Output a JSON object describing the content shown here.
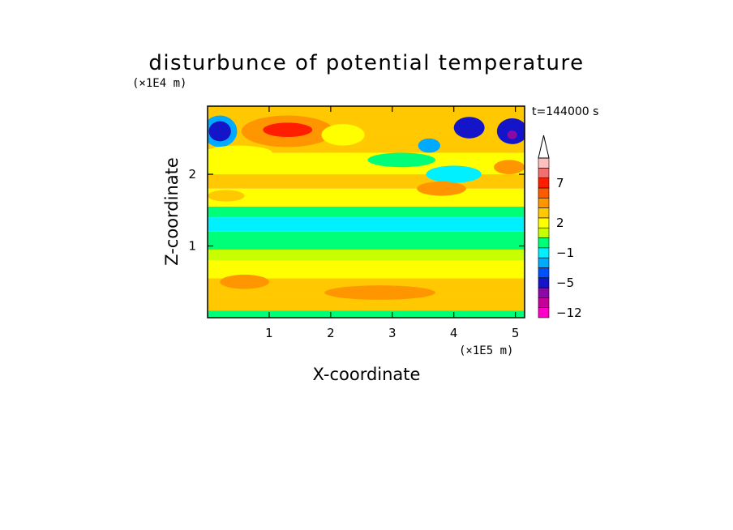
{
  "chart_data": {
    "type": "heatmap",
    "title": "disturbunce of potential temperature",
    "xlabel": "X-coordinate",
    "ylabel": "Z-coordinate",
    "x_unit": "(×1E5 m)",
    "y_unit": "(×1E4 m)",
    "time_label": "t=144000 s",
    "xlim": [
      0,
      5.15
    ],
    "ylim": [
      0,
      2.95
    ],
    "x_ticks": [
      {
        "value": 1,
        "label": "1"
      },
      {
        "value": 2,
        "label": "2"
      },
      {
        "value": 3,
        "label": "3"
      },
      {
        "value": 4,
        "label": "4"
      },
      {
        "value": 5,
        "label": "5"
      }
    ],
    "y_ticks": [
      {
        "value": 1,
        "label": "1"
      },
      {
        "value": 2,
        "label": "2"
      }
    ],
    "colorbar": {
      "levels": [
        {
          "value": -12,
          "color": "#ff00c8"
        },
        {
          "value": -10,
          "color": "#c8009a"
        },
        {
          "value": -8,
          "color": "#8a0aa6"
        },
        {
          "value": -5,
          "color": "#1414c8"
        },
        {
          "value": -4,
          "color": "#0050ff"
        },
        {
          "value": -3,
          "color": "#00aaff"
        },
        {
          "value": -1,
          "color": "#00f0ff"
        },
        {
          "value": 0,
          "color": "#00ff78"
        },
        {
          "value": 1,
          "color": "#c8ff00"
        },
        {
          "value": 2,
          "color": "#ffff00"
        },
        {
          "value": 3,
          "color": "#ffc800"
        },
        {
          "value": 5,
          "color": "#ff9600"
        },
        {
          "value": 6,
          "color": "#ff5a00"
        },
        {
          "value": 7,
          "color": "#ff1e00"
        },
        {
          "value": 8,
          "color": "#f07070"
        },
        {
          "value": 9,
          "color": "#ffc0c0"
        }
      ],
      "tick_labels": [
        {
          "value": 7,
          "label": "7"
        },
        {
          "value": 2,
          "label": "2"
        },
        {
          "value": -1,
          "label": "−1"
        },
        {
          "value": -5,
          "label": "−5"
        },
        {
          "value": -12,
          "label": "−12"
        }
      ],
      "extend": "max"
    },
    "bands": [
      {
        "z_low": 0.0,
        "z_high": 0.1,
        "level": 0
      },
      {
        "z_low": 0.1,
        "z_high": 0.3,
        "level": 3
      },
      {
        "z_low": 0.3,
        "z_high": 0.55,
        "level": 3
      },
      {
        "z_low": 0.55,
        "z_high": 0.8,
        "level": 2
      },
      {
        "z_low": 0.8,
        "z_high": 0.95,
        "level": 1
      },
      {
        "z_low": 0.95,
        "z_high": 1.2,
        "level": 0
      },
      {
        "z_low": 1.2,
        "z_high": 1.4,
        "level": -1
      },
      {
        "z_low": 1.4,
        "z_high": 1.55,
        "level": 0
      },
      {
        "z_low": 1.55,
        "z_high": 1.8,
        "level": 2
      },
      {
        "z_low": 1.8,
        "z_high": 2.0,
        "level": 3
      },
      {
        "z_low": 2.0,
        "z_high": 2.3,
        "level": 2
      },
      {
        "z_low": 2.3,
        "z_high": 2.6,
        "level": 3
      },
      {
        "z_low": 2.6,
        "z_high": 2.95,
        "level": 3
      }
    ],
    "features": [
      {
        "x": 1.3,
        "z": 2.6,
        "rx": 0.75,
        "rz": 0.22,
        "level": 5
      },
      {
        "x": 1.3,
        "z": 2.62,
        "rx": 0.4,
        "rz": 0.1,
        "level": 7
      },
      {
        "x": 0.2,
        "z": 2.6,
        "rx": 0.28,
        "rz": 0.22,
        "level": -3
      },
      {
        "x": 0.2,
        "z": 2.6,
        "rx": 0.18,
        "rz": 0.14,
        "level": -5
      },
      {
        "x": 4.25,
        "z": 2.65,
        "rx": 0.25,
        "rz": 0.15,
        "level": -5
      },
      {
        "x": 4.95,
        "z": 2.6,
        "rx": 0.25,
        "rz": 0.18,
        "level": -5
      },
      {
        "x": 4.95,
        "z": 2.55,
        "rx": 0.08,
        "rz": 0.06,
        "level": -8
      },
      {
        "x": 3.6,
        "z": 2.4,
        "rx": 0.18,
        "rz": 0.1,
        "level": -3
      },
      {
        "x": 4.0,
        "z": 2.0,
        "rx": 0.45,
        "rz": 0.12,
        "level": -1
      },
      {
        "x": 3.15,
        "z": 2.2,
        "rx": 0.55,
        "rz": 0.1,
        "level": 0
      },
      {
        "x": 3.8,
        "z": 1.8,
        "rx": 0.4,
        "rz": 0.1,
        "level": 5
      },
      {
        "x": 4.9,
        "z": 2.1,
        "rx": 0.25,
        "rz": 0.1,
        "level": 5
      },
      {
        "x": 0.5,
        "z": 2.3,
        "rx": 0.55,
        "rz": 0.1,
        "level": 2
      },
      {
        "x": 0.3,
        "z": 1.7,
        "rx": 0.3,
        "rz": 0.08,
        "level": 3
      },
      {
        "x": 2.2,
        "z": 2.55,
        "rx": 0.35,
        "rz": 0.15,
        "level": 2
      },
      {
        "x": 2.8,
        "z": 0.35,
        "rx": 0.9,
        "rz": 0.1,
        "level": 5
      },
      {
        "x": 0.6,
        "z": 0.5,
        "rx": 0.4,
        "rz": 0.1,
        "level": 5
      }
    ]
  }
}
